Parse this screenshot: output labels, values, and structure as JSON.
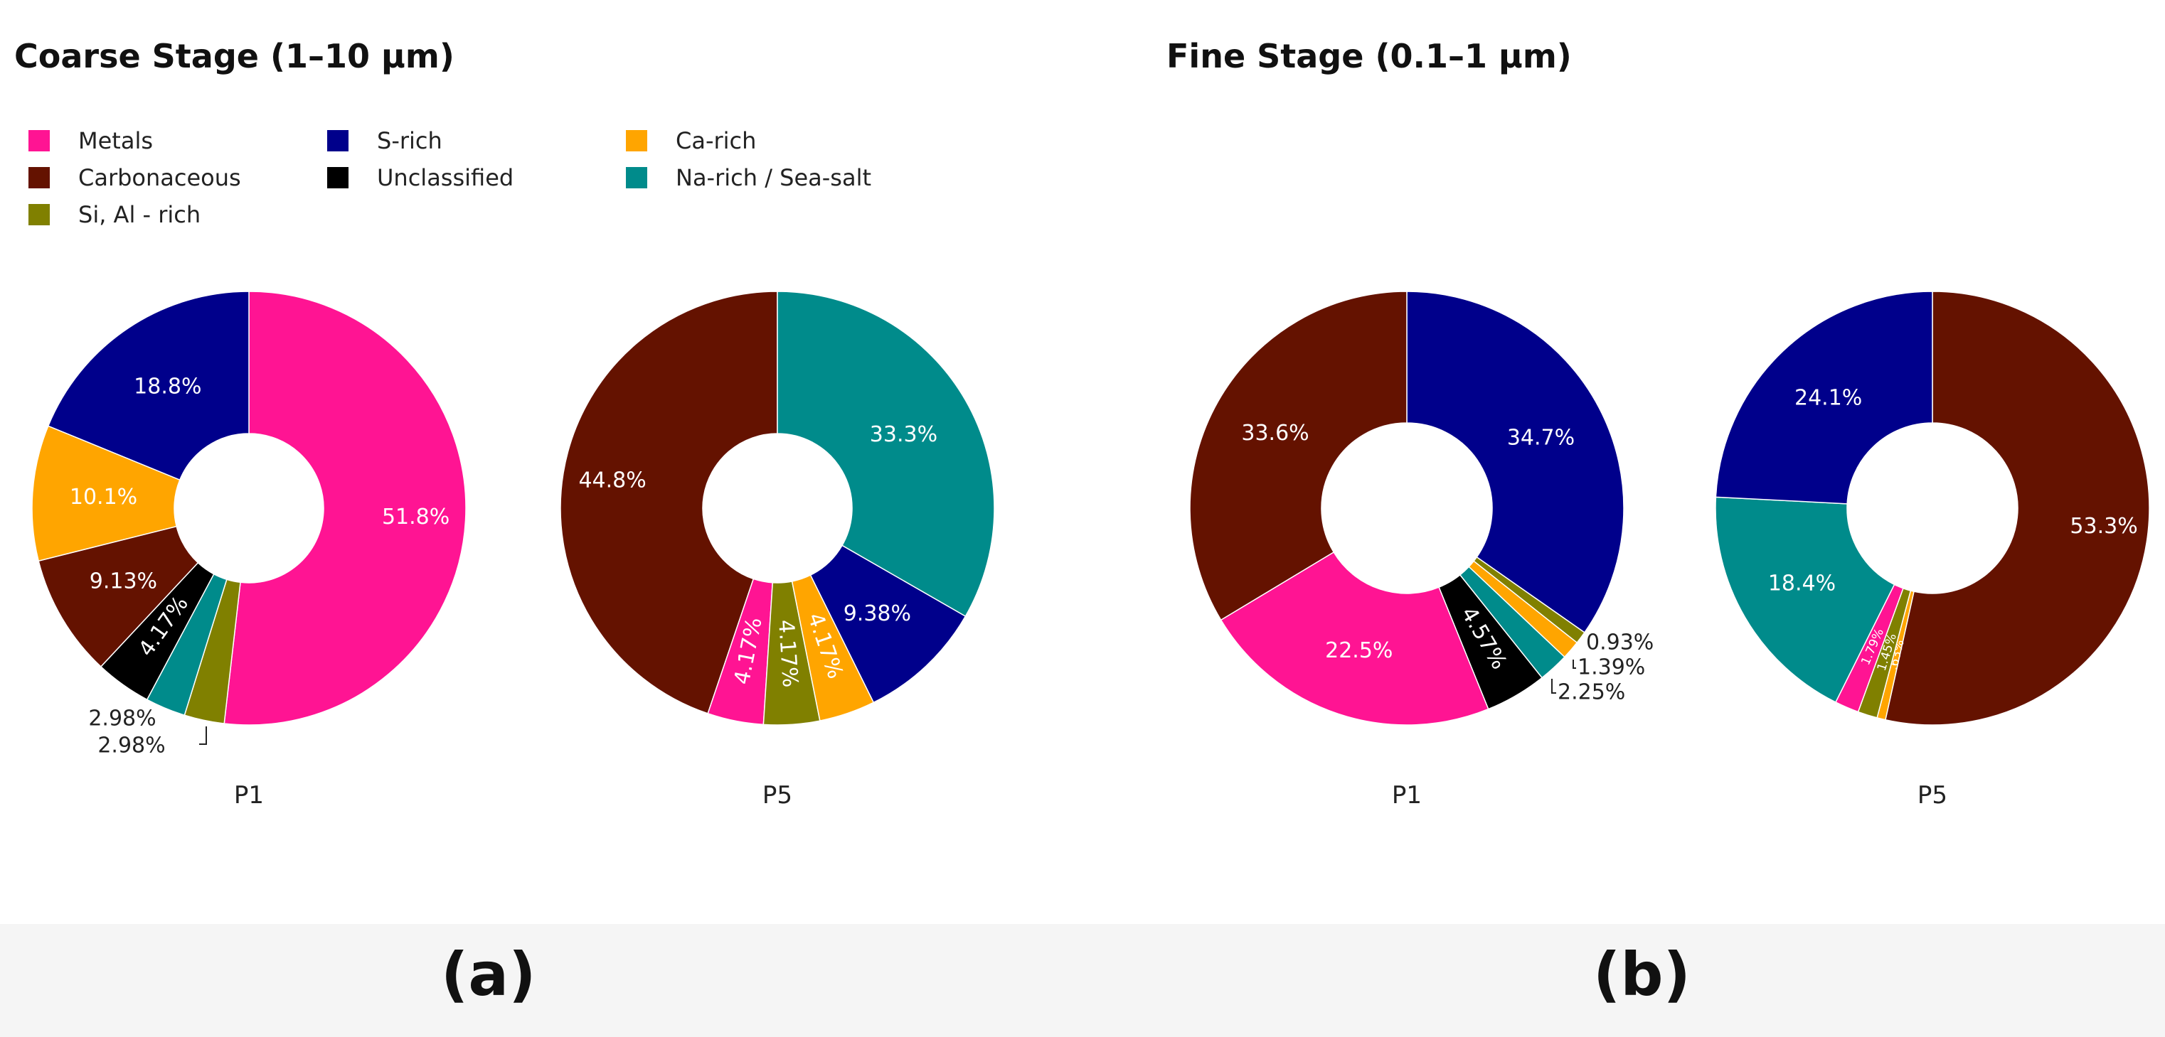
{
  "titles": {
    "left": "Coarse Stage (1–10 μm)",
    "right": "Fine Stage (0.1–1 μm)"
  },
  "panel_labels": {
    "left": "(a)",
    "right": "(b)"
  },
  "legend": [
    {
      "name": "Metals",
      "color": "#ff1493"
    },
    {
      "name": "S-rich",
      "color": "#00008b"
    },
    {
      "name": "Ca-rich",
      "color": "#ffa500"
    },
    {
      "name": "Carbonaceous",
      "color": "#641200"
    },
    {
      "name": "Unclassified",
      "color": "#000000"
    },
    {
      "name": "Na-rich / Sea-salt",
      "color": "#008b8b"
    },
    {
      "name": "Si, Al - rich",
      "color": "#808000"
    }
  ],
  "chart_data": [
    {
      "type": "pie",
      "title": "P1",
      "group": "Coarse Stage (1–10 μm)",
      "slices": [
        {
          "label": "Metals",
          "value": 51.8,
          "text": "51.8%"
        },
        {
          "label": "Si, Al - rich",
          "value": 2.98,
          "text": "2.98%"
        },
        {
          "label": "Na-rich / Sea-salt",
          "value": 2.98,
          "text": "2.98%"
        },
        {
          "label": "Unclassified",
          "value": 4.17,
          "text": "4.17%"
        },
        {
          "label": "Carbonaceous",
          "value": 9.13,
          "text": "9.13%"
        },
        {
          "label": "Ca-rich",
          "value": 10.1,
          "text": "10.1%"
        },
        {
          "label": "S-rich",
          "value": 18.8,
          "text": "18.8%"
        }
      ]
    },
    {
      "type": "pie",
      "title": "P5",
      "group": "Coarse Stage (1–10 μm)",
      "slices": [
        {
          "label": "Carbonaceous",
          "value": 44.8,
          "text": "44.8%"
        },
        {
          "label": "Metals",
          "value": 4.17,
          "text": "4.17%"
        },
        {
          "label": "Si, Al - rich",
          "value": 4.17,
          "text": "4.17%"
        },
        {
          "label": "Ca-rich",
          "value": 4.17,
          "text": "4.17%"
        },
        {
          "label": "S-rich",
          "value": 9.38,
          "text": "9.38%"
        },
        {
          "label": "Na-rich / Sea-salt",
          "value": 33.3,
          "text": "33.3%"
        }
      ]
    },
    {
      "type": "pie",
      "title": "P1",
      "group": "Fine Stage (0.1–1 μm)",
      "slices": [
        {
          "label": "S-rich",
          "value": 34.7,
          "text": "34.7%"
        },
        {
          "label": "Si, Al - rich",
          "value": 0.93,
          "text": "0.93%"
        },
        {
          "label": "Ca-rich",
          "value": 1.39,
          "text": "1.39%"
        },
        {
          "label": "Na-rich / Sea-salt",
          "value": 2.25,
          "text": "2.25%"
        },
        {
          "label": "Unclassified",
          "value": 4.57,
          "text": "4.57%"
        },
        {
          "label": "Metals",
          "value": 22.5,
          "text": "22.5%"
        },
        {
          "label": "Carbonaceous",
          "value": 33.6,
          "text": "33.6%"
        }
      ]
    },
    {
      "type": "pie",
      "title": "P5",
      "group": "Fine Stage (0.1–1 μm)",
      "slices": [
        {
          "label": "Carbonaceous",
          "value": 53.3,
          "text": "53.3%"
        },
        {
          "label": "Ca-rich",
          "value": 0.63,
          "text": ".63%"
        },
        {
          "label": "Si, Al - rich",
          "value": 1.45,
          "text": "1.45%"
        },
        {
          "label": "Metals",
          "value": 1.79,
          "text": "1.79%"
        },
        {
          "label": "Na-rich / Sea-salt",
          "value": 18.4,
          "text": "18.4%"
        },
        {
          "label": "S-rich",
          "value": 24.1,
          "text": "24.1%"
        }
      ]
    }
  ]
}
